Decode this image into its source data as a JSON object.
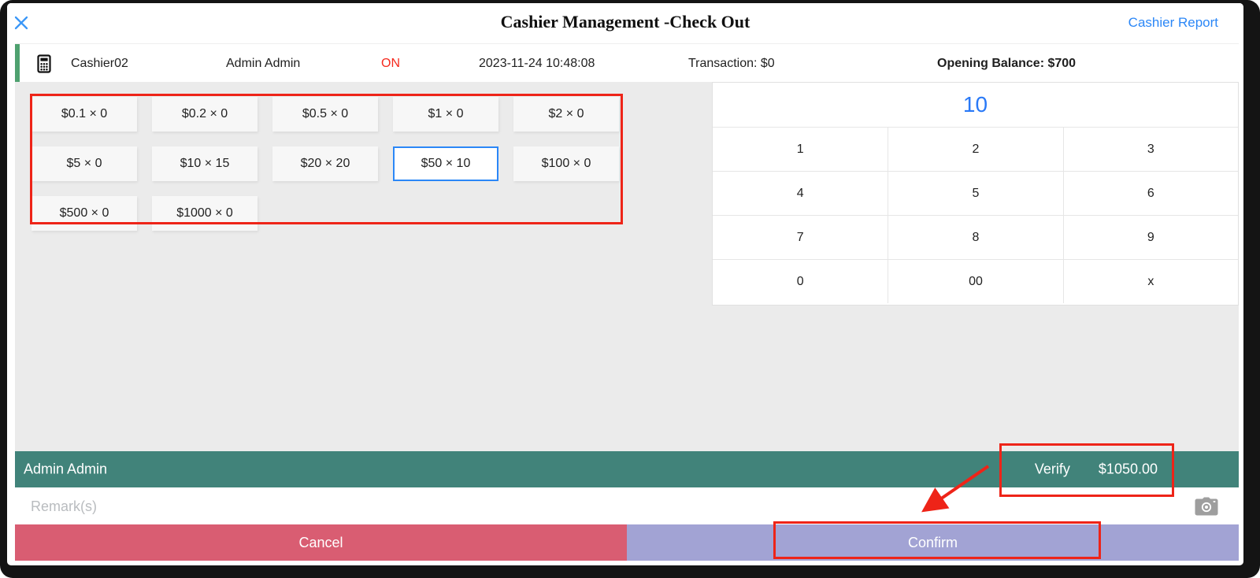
{
  "colors": {
    "accent_blue": "#2b87f7",
    "keypad_display_blue": "#2979f7",
    "annotation_red": "#ee2418",
    "status_on_red": "#f5291d",
    "teal_bar": "#41837a",
    "cancel_red": "#d95d72",
    "confirm_lavender": "#a2a3d4",
    "info_green_edge": "#4ea16f",
    "panel_gray": "#ebebeb",
    "frame_black": "#141414"
  },
  "header": {
    "title": "Cashier Management -Check Out",
    "report_link": "Cashier Report"
  },
  "info_bar": {
    "cashier": "Cashier02",
    "operator": "Admin Admin",
    "status": "ON",
    "datetime": "2023-11-24 10:48:08",
    "transaction": "Transaction: $0",
    "opening_balance": "Opening Balance: $700"
  },
  "denominations": {
    "selected_index": 8,
    "items": [
      "$0.1 × 0",
      "$0.2 × 0",
      "$0.5 × 0",
      "$1 × 0",
      "$2 × 0",
      "$5 × 0",
      "$10 × 15",
      "$20 × 20",
      "$50 × 10",
      "$100 × 0",
      "$500 × 0",
      "$1000 × 0"
    ]
  },
  "keypad": {
    "display": "10",
    "keys": [
      "1",
      "2",
      "3",
      "4",
      "5",
      "6",
      "7",
      "8",
      "9",
      "0",
      "00",
      "x"
    ]
  },
  "verify_bar": {
    "operator": "Admin Admin",
    "verify_label": "Verify",
    "amount": "$1050.00"
  },
  "remark": {
    "placeholder": "Remark(s)"
  },
  "actions": {
    "cancel": "Cancel",
    "confirm": "Confirm"
  }
}
